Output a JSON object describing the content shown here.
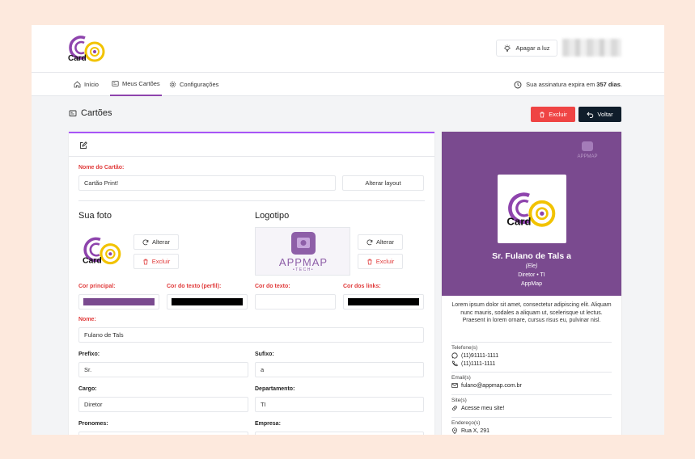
{
  "header": {
    "logo_text": "Card",
    "logo_small_text": "appmap",
    "light_button_label": "Apagar a luz"
  },
  "nav": {
    "items": [
      {
        "label": "Início",
        "icon": "home-icon"
      },
      {
        "label": "Meus Cartões",
        "icon": "card-icon"
      },
      {
        "label": "Configurações",
        "icon": "gear-icon"
      }
    ],
    "subscription_prefix": "Sua assinatura expira em",
    "subscription_days": "357 dias",
    "subscription_suffix": "."
  },
  "page": {
    "title": "Cartões",
    "delete_label": "Excluir",
    "back_label": "Voltar"
  },
  "form": {
    "card_name_label": "Nome do Cartão:",
    "card_name_value": "Cartão Print!",
    "change_layout_label": "Alterar layout",
    "photo_title": "Sua foto",
    "logo_title": "Logotipo",
    "change_label": "Alterar",
    "remove_label": "Excluir",
    "appmap_logo_text": "APPMAP",
    "appmap_logo_sub": "•TECH•",
    "colors": [
      {
        "label": "Cor principal:",
        "value": "#7a4a8f"
      },
      {
        "label": "Cor do texto (perfil):",
        "value": "#000000"
      },
      {
        "label": "Cor do texto:",
        "value": "#ffffff"
      },
      {
        "label": "Cor dos links:",
        "value": "#000000"
      }
    ],
    "name_label": "Nome:",
    "name_value": "Fulano de Tals",
    "prefix_label": "Prefixo:",
    "prefix_value": "Sr.",
    "suffix_label": "Sufixo:",
    "suffix_value": "a",
    "role_label": "Cargo:",
    "role_value": "Diretor",
    "department_label": "Departamento:",
    "department_value": "TI",
    "pronouns_label": "Pronomes:",
    "company_label": "Empresa:"
  },
  "preview": {
    "accent_color": "#7a4a8f",
    "name": "Sr. Fulano de Tals a",
    "pronouns": "(Ele)",
    "role_line": "Diretor • TI",
    "company": "AppMap",
    "bio": "Lorem ipsum dolor sit amet, consectetur adipiscing elit. Aliquam nunc mauris, sodales a aliquam ut, scelerisque ut lectus. Praesent in lorem ornare, cursus risus eu, pulvinar nisl.",
    "phones_label": "Telefone(s)",
    "phone_1": "(11)91111-1111",
    "phone_2": "(11)1111-1111",
    "email_label": "Email(s)",
    "email": "fulano@appmap.com.br",
    "sites_label": "Site(s)",
    "site": "Acesse meu site!",
    "address_label": "Endereço(s)",
    "address": "Rua X, 291"
  }
}
